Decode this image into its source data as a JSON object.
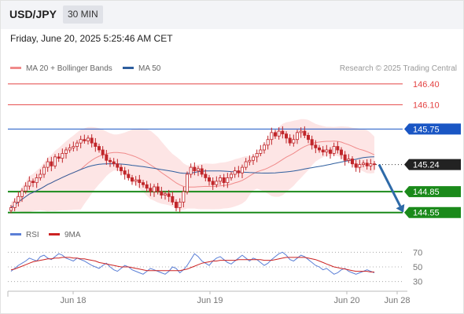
{
  "header": {
    "symbol": "USD/JPY",
    "timeframe": "30 MIN",
    "datetime": "Friday, June 20, 2025 5:25:46 AM CET"
  },
  "legend": {
    "ma20": "MA 20 + Bollinger Bands",
    "ma50": "MA 50",
    "credit": "Research © 2025 Trading Central",
    "rsi": "RSI",
    "rsi_ma": "9MA"
  },
  "colors": {
    "candle": "#c0262a",
    "ma20": "#f08a8a",
    "ma50": "#2e5e9e",
    "bands": "#fde5e5",
    "resistance": "#e44444",
    "pivot": "#1a56c4",
    "support": "#1a8a1a",
    "arrow": "#2e6aa8",
    "rsi": "#5b7fd6",
    "rsi_ma": "#cc2222"
  },
  "chart_data": [
    {
      "type": "candlestick",
      "title": "USD/JPY",
      "timeframe": "30 MIN",
      "x_labels": [
        "Jun 18",
        "Jun 19",
        "Jun 20",
        "Jun 28"
      ],
      "ylim": [
        144.4,
        146.5
      ],
      "levels": [
        {
          "value": 146.4,
          "label": "146.40",
          "kind": "resistance"
        },
        {
          "value": 146.1,
          "label": "146.10",
          "kind": "resistance"
        },
        {
          "value": 145.75,
          "label": "145.75",
          "kind": "pivot"
        },
        {
          "value": 145.24,
          "label": "145.24",
          "kind": "last"
        },
        {
          "value": 144.85,
          "label": "144.85",
          "kind": "support"
        },
        {
          "value": 144.55,
          "label": "144.55",
          "kind": "support"
        }
      ],
      "close": [
        144.62,
        144.7,
        144.78,
        144.86,
        144.93,
        145.0,
        144.98,
        145.05,
        145.1,
        145.2,
        145.28,
        145.22,
        145.35,
        145.33,
        145.4,
        145.45,
        145.48,
        145.5,
        145.55,
        145.6,
        145.58,
        145.62,
        145.55,
        145.5,
        145.45,
        145.38,
        145.3,
        145.28,
        145.25,
        145.2,
        145.15,
        145.1,
        145.05,
        145.0,
        145.02,
        144.98,
        144.95,
        144.9,
        144.85,
        144.92,
        144.85,
        144.8,
        144.82,
        144.78,
        144.7,
        144.62,
        144.7,
        144.85,
        145.1,
        145.2,
        145.15,
        145.18,
        145.1,
        145.05,
        145.0,
        144.95,
        145.0,
        145.05,
        144.98,
        145.05,
        145.1,
        145.15,
        145.12,
        145.2,
        145.28,
        145.3,
        145.35,
        145.4,
        145.45,
        145.52,
        145.6,
        145.7,
        145.65,
        145.72,
        145.68,
        145.62,
        145.55,
        145.6,
        145.7,
        145.72,
        145.66,
        145.6,
        145.52,
        145.48,
        145.45,
        145.42,
        145.45,
        145.4,
        145.5,
        145.45,
        145.38,
        145.3,
        145.32,
        145.25,
        145.2,
        145.24,
        145.26,
        145.22,
        145.25,
        145.24
      ],
      "ma20_last": 145.4,
      "ma50_last": 145.35,
      "forecast": {
        "from": 145.24,
        "to": 144.55
      },
      "xlabel": "",
      "ylabel": ""
    },
    {
      "type": "line",
      "title": "RSI",
      "series": [
        {
          "name": "RSI",
          "values": [
            44,
            48,
            52,
            55,
            58,
            62,
            60,
            58,
            64,
            66,
            62,
            60,
            64,
            68,
            66,
            62,
            60,
            58,
            62,
            60,
            58,
            55,
            52,
            50,
            48,
            52,
            55,
            50,
            46,
            44,
            48,
            52,
            50,
            46,
            44,
            42,
            40,
            44,
            48,
            46,
            44,
            42,
            40,
            44,
            50,
            48,
            42,
            46,
            52,
            60,
            68,
            64,
            58,
            55,
            52,
            58,
            62,
            64,
            60,
            56,
            54,
            58,
            62,
            66,
            62,
            58,
            62,
            60,
            56,
            52,
            55,
            60,
            64,
            68,
            70,
            66,
            60,
            58,
            62,
            66,
            64,
            60,
            56,
            52,
            50,
            46,
            48,
            44,
            40,
            42,
            46,
            48,
            44,
            42,
            40,
            42,
            44,
            46,
            44,
            42
          ]
        },
        {
          "name": "9MA",
          "values": [
            46,
            47,
            49,
            51,
            53,
            55,
            57,
            58,
            59,
            60,
            61,
            61,
            62,
            62,
            63,
            63,
            63,
            62,
            62,
            61,
            61,
            60,
            59,
            58,
            56,
            55,
            54,
            53,
            52,
            51,
            50,
            50,
            50,
            49,
            48,
            47,
            46,
            45,
            45,
            45,
            45,
            45,
            45,
            45,
            45,
            45,
            45,
            46,
            47,
            49,
            51,
            53,
            55,
            56,
            57,
            58,
            58,
            59,
            59,
            59,
            59,
            59,
            60,
            60,
            60,
            60,
            60,
            60,
            60,
            59,
            59,
            59,
            60,
            61,
            62,
            63,
            63,
            63,
            63,
            63,
            63,
            62,
            61,
            60,
            58,
            56,
            54,
            52,
            50,
            49,
            48,
            47,
            46,
            45,
            44,
            44,
            44,
            44,
            43,
            43
          ]
        }
      ],
      "yticks": [
        30,
        50,
        70
      ],
      "ylim": [
        20,
        80
      ],
      "xlabel": "",
      "ylabel": ""
    }
  ]
}
